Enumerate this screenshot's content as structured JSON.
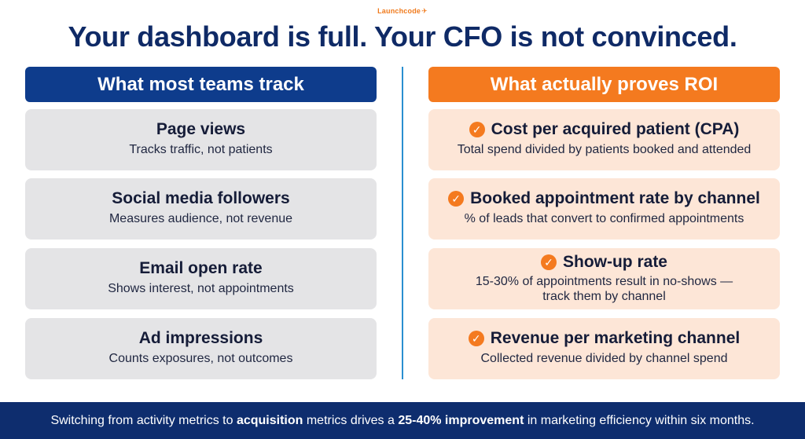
{
  "brand": {
    "name": "Launchcode",
    "mark": "✈"
  },
  "headline": "Your dashboard is full. Your CFO is not convinced.",
  "left_column": {
    "header": "What most teams track",
    "items": [
      {
        "title": "Page views",
        "subtitle": "Tracks traffic, not patients"
      },
      {
        "title": "Social media followers",
        "subtitle": "Measures audience, not revenue"
      },
      {
        "title": "Email open rate",
        "subtitle": "Shows interest, not appointments"
      },
      {
        "title": "Ad impressions",
        "subtitle": "Counts exposures, not outcomes"
      }
    ]
  },
  "right_column": {
    "header": "What actually proves ROI",
    "check_icon": "✓",
    "items": [
      {
        "title": "Cost per acquired patient (CPA)",
        "subtitle": "Total spend divided by patients booked and attended"
      },
      {
        "title": "Booked appointment rate by channel",
        "subtitle": "% of leads that convert to confirmed appointments"
      },
      {
        "title": "Show-up rate",
        "subtitle": "15-30% of appointments result in no-shows —",
        "subtitle_line2": "track them by channel"
      },
      {
        "title": "Revenue per marketing channel",
        "subtitle": "Collected revenue divided by channel spend"
      }
    ]
  },
  "footer": {
    "part1": "Switching from activity metrics to ",
    "bold1": "acquisition",
    "part2": " metrics drives a ",
    "bold2": "25-40% improvement",
    "part3": " in marketing efficiency within six months."
  },
  "colors": {
    "navy": "#0e3c8c",
    "orange": "#f47a1f",
    "divider_blue": "#2a8fd0",
    "left_card": "#e4e4e6",
    "right_card": "#fde6d7",
    "footer": "#0e2d6e"
  }
}
